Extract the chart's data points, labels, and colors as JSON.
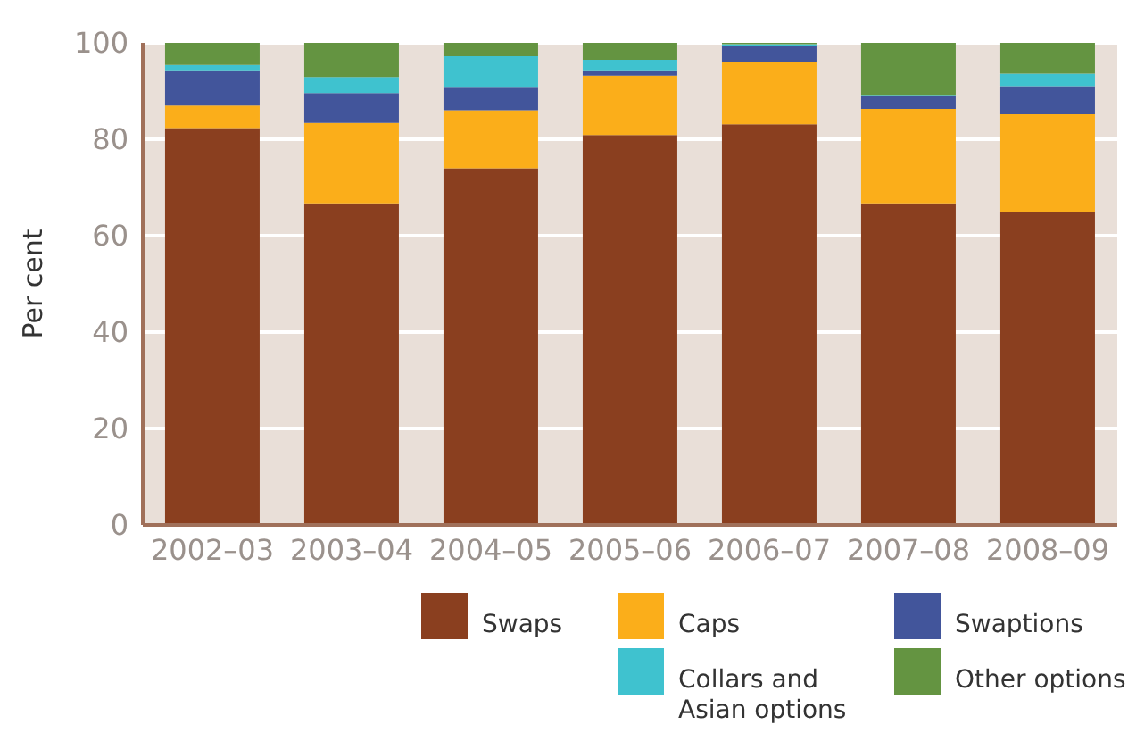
{
  "chart_data": {
    "type": "bar",
    "stacked": true,
    "ylabel": "Per cent",
    "categories": [
      "2002–03",
      "2003–04",
      "2004–05",
      "2005–06",
      "2006–07",
      "2007–08",
      "2008–09"
    ],
    "series": [
      {
        "name": "Swaps",
        "color": "#8a3f1f",
        "values": [
          82.3,
          66.7,
          74.0,
          80.9,
          83.1,
          66.7,
          64.9
        ]
      },
      {
        "name": "Caps",
        "color": "#fbae1a",
        "values": [
          4.7,
          16.7,
          12.0,
          12.3,
          13.0,
          19.6,
          20.3
        ]
      },
      {
        "name": "Swaptions",
        "color": "#42559b",
        "values": [
          7.3,
          6.2,
          4.7,
          1.1,
          3.3,
          2.6,
          5.8
        ]
      },
      {
        "name": "Collars and Asian options",
        "color": "#3fc2cf",
        "values": [
          1.1,
          3.3,
          6.5,
          2.2,
          0.3,
          0.3,
          2.6
        ]
      },
      {
        "name": "Other options",
        "color": "#649441",
        "values": [
          4.6,
          7.1,
          2.8,
          3.5,
          0.3,
          10.8,
          6.4
        ]
      }
    ],
    "ylim": [
      0,
      100
    ],
    "yticks": [
      0,
      20,
      40,
      60,
      80,
      100
    ],
    "grid": "y",
    "legend": "bottom"
  }
}
